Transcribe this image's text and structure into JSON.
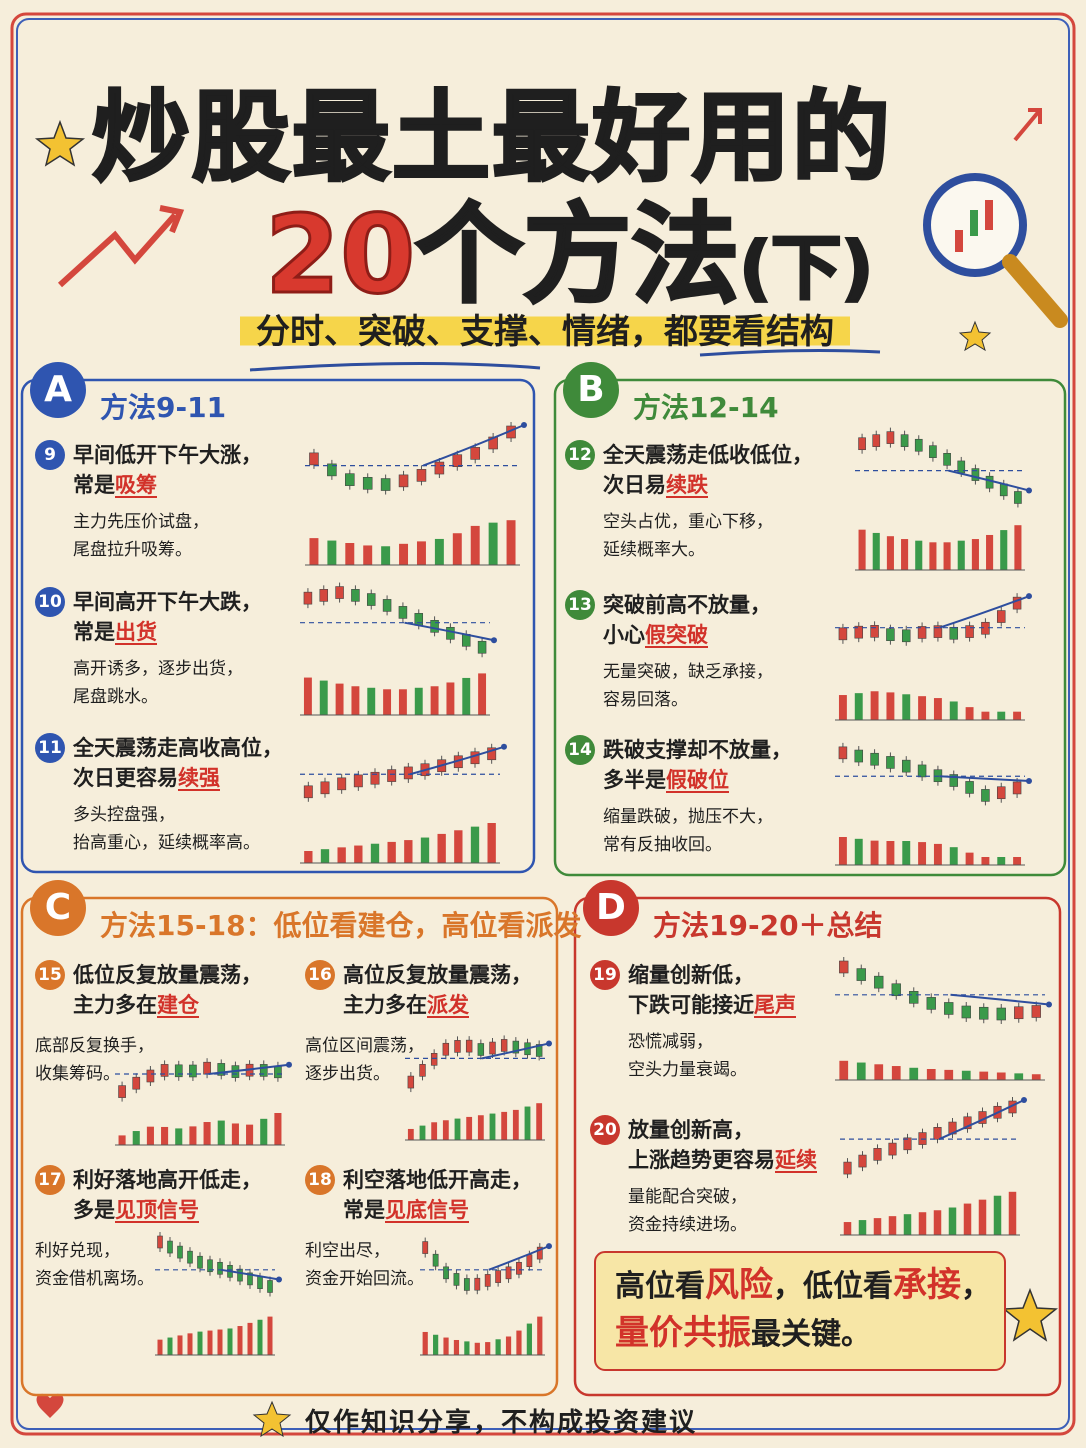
{
  "header": {
    "title_line1": "炒股最土最好用的",
    "title_number": "20",
    "title_line2": "个方法",
    "title_suffix": "(下)",
    "subtitle": "分时、突破、支撑、情绪，都要看结构"
  },
  "sections": [
    {
      "badge": "A",
      "title": "方法9-11",
      "methods": [
        {
          "num": "9",
          "line1": "早间低开下午大涨，",
          "line2": "常是",
          "key": "吸筹",
          "desc": [
            "主力先压价试盘，",
            "尾盘拉升吸筹。"
          ]
        },
        {
          "num": "10",
          "line1": "早间高开下午大跌，",
          "line2": "常是",
          "key": "出货",
          "desc": [
            "高开诱多，逐步出货，",
            "尾盘跳水。"
          ]
        },
        {
          "num": "11",
          "line1": "全天震荡走高收高位，",
          "line2": "次日更容易",
          "key": "续强",
          "desc": [
            "多头控盘强，",
            "抬高重心，延续概率高。"
          ]
        }
      ]
    },
    {
      "badge": "B",
      "title": "方法12-14",
      "methods": [
        {
          "num": "12",
          "line1": "全天震荡走低收低位，",
          "line2": "次日易",
          "key": "续跌",
          "desc": [
            "空头占优，重心下移，",
            "延续概率大。"
          ]
        },
        {
          "num": "13",
          "line1": "突破前高不放量，",
          "line2": "小心",
          "key": "假突破",
          "desc": [
            "无量突破，缺乏承接，",
            "容易回落。"
          ]
        },
        {
          "num": "14",
          "line1": "跌破支撑却不放量，",
          "line2": "多半是",
          "key": "假破位",
          "desc": [
            "缩量跌破，抛压不大，",
            "常有反抽收回。"
          ]
        }
      ]
    },
    {
      "badge": "C",
      "title": "方法15-18：低位看建仓，高位看派发",
      "methods": [
        {
          "num": "15",
          "line1": "低位反复放量震荡，",
          "line2": "主力多在",
          "key": "建仓",
          "desc": [
            "底部反复换手，",
            "收集筹码。"
          ]
        },
        {
          "num": "16",
          "line1": "高位反复放量震荡，",
          "line2": "主力多在",
          "key": "派发",
          "desc": [
            "高位区间震荡，",
            "逐步出货。"
          ]
        },
        {
          "num": "17",
          "line1": "利好落地高开低走，",
          "line2": "多是",
          "key": "见顶信号",
          "desc": [
            "利好兑现，",
            "资金借机离场。"
          ]
        },
        {
          "num": "18",
          "line1": "利空落地低开高走，",
          "line2": "常是",
          "key": "见底信号",
          "desc": [
            "利空出尽，",
            "资金开始回流。"
          ]
        }
      ]
    },
    {
      "badge": "D",
      "title": "方法19-20＋总结",
      "methods": [
        {
          "num": "19",
          "line1": "缩量创新低，",
          "line2": "下跌可能接近",
          "key": "尾声",
          "desc": [
            "恐慌减弱，",
            "空头力量衰竭。"
          ]
        },
        {
          "num": "20",
          "line1": "放量创新高，",
          "line2": "上涨趋势更容易",
          "key": "延续",
          "desc": [
            "量能配合突破，",
            "资金持续进场。"
          ]
        }
      ]
    }
  ],
  "summary": {
    "line1": [
      "高位看",
      "风险",
      "，低位看",
      "承接",
      "，"
    ],
    "line2": [
      "量价共振",
      "最关键。"
    ]
  },
  "footer": "仅作知识分享，不构成投资建议"
}
